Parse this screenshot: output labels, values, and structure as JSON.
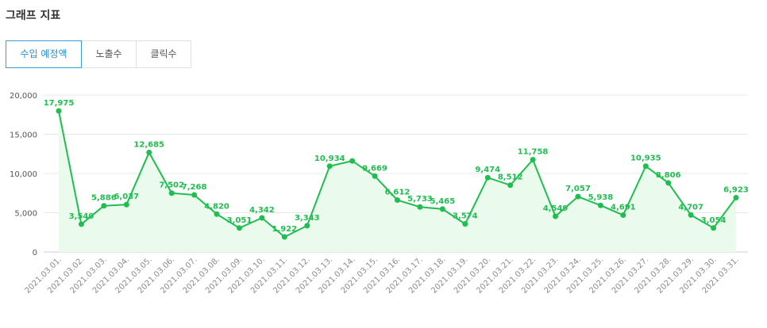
{
  "title": "그래프 지표",
  "tabs": [
    {
      "label": "수입 예정액",
      "active": true
    },
    {
      "label": "노출수",
      "active": false
    },
    {
      "label": "클릭수",
      "active": false
    }
  ],
  "colors": {
    "line": "#1fbe4f",
    "area": "#eafbee",
    "accent": "#2b8fd3",
    "grid": "#e8e8e8"
  },
  "chart_data": {
    "type": "area",
    "title": "",
    "xlabel": "",
    "ylabel": "",
    "ylim": [
      0,
      20000
    ],
    "yticks": [
      "0",
      "5,000",
      "10,000",
      "15,000",
      "20,000"
    ],
    "grid": true,
    "categories": [
      "2021.03.01.",
      "2021.03.02.",
      "2021.03.03.",
      "2021.03.04.",
      "2021.03.05.",
      "2021.03.06.",
      "2021.03.07.",
      "2021.03.08.",
      "2021.03.09.",
      "2021.03.10.",
      "2021.03.11.",
      "2021.03.12.",
      "2021.03.13.",
      "2021.03.14.",
      "2021.03.15.",
      "2021.03.16.",
      "2021.03.17.",
      "2021.03.18.",
      "2021.03.19.",
      "2021.03.20.",
      "2021.03.21.",
      "2021.03.22.",
      "2021.03.23.",
      "2021.03.24.",
      "2021.03.25.",
      "2021.03.26.",
      "2021.03.27.",
      "2021.03.28.",
      "2021.03.29.",
      "2021.03.30.",
      "2021.03.31."
    ],
    "values": [
      17975,
      3540,
      5886,
      6037,
      12685,
      7502,
      7268,
      4820,
      3051,
      4342,
      1922,
      3343,
      10934,
      11600,
      9669,
      6612,
      5733,
      5465,
      3574,
      9474,
      8512,
      11758,
      4549,
      7057,
      5938,
      4691,
      10935,
      8806,
      4707,
      3054,
      6923
    ],
    "labels": [
      "17,975",
      "3,540",
      "5,886",
      "6,037",
      "12,685",
      "7,502",
      "7,268",
      "4,820",
      "3,051",
      "4,342",
      "1,922",
      "3,343",
      "10,934",
      "",
      "9,669",
      "6,612",
      "5,733",
      "5,465",
      "3,574",
      "9,474",
      "8,512",
      "11,758",
      "4,549",
      "7,057",
      "5,938",
      "4,691",
      "10,935",
      "8,806",
      "4,707",
      "3,054",
      "6,923"
    ]
  }
}
